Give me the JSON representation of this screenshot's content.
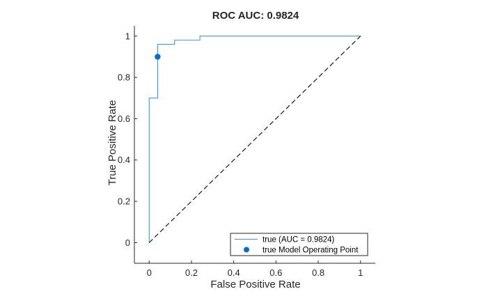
{
  "chart_data": {
    "type": "line",
    "title": "ROC AUC: 0.9824",
    "xlabel": "False Positive Rate",
    "ylabel": "True Positive Rate",
    "xlim": [
      -0.07,
      1.07
    ],
    "ylim": [
      -0.1,
      1.05
    ],
    "xticks": [
      0,
      0.2,
      0.4,
      0.6,
      0.8,
      1
    ],
    "xtick_labels": [
      "0",
      "0.2",
      "0.4",
      "0.6",
      "0.8",
      "1"
    ],
    "yticks": [
      0,
      0.2,
      0.4,
      0.6,
      0.8,
      1
    ],
    "ytick_labels": [
      "0",
      "0.2",
      "0.4",
      "0.6",
      "0.8",
      "1"
    ],
    "grid": false,
    "legend_position": "bottom-right",
    "series": [
      {
        "name": "true (AUC = 0.9824)",
        "style": "step-line",
        "color": "#4a90d9",
        "x": [
          0,
          0,
          0.04,
          0.04,
          0.04,
          0.12,
          0.12,
          0.24,
          0.24,
          1
        ],
        "y": [
          0,
          0.7,
          0.7,
          0.9,
          0.96,
          0.96,
          0.98,
          0.98,
          1.0,
          1.0
        ]
      },
      {
        "name": "true Model Operating Point",
        "style": "marker",
        "color": "#0b6dbd",
        "x": [
          0.04
        ],
        "y": [
          0.9
        ]
      },
      {
        "style": "dashed-line",
        "color": "#000000",
        "x": [
          0,
          1
        ],
        "y": [
          0,
          1
        ]
      }
    ]
  }
}
